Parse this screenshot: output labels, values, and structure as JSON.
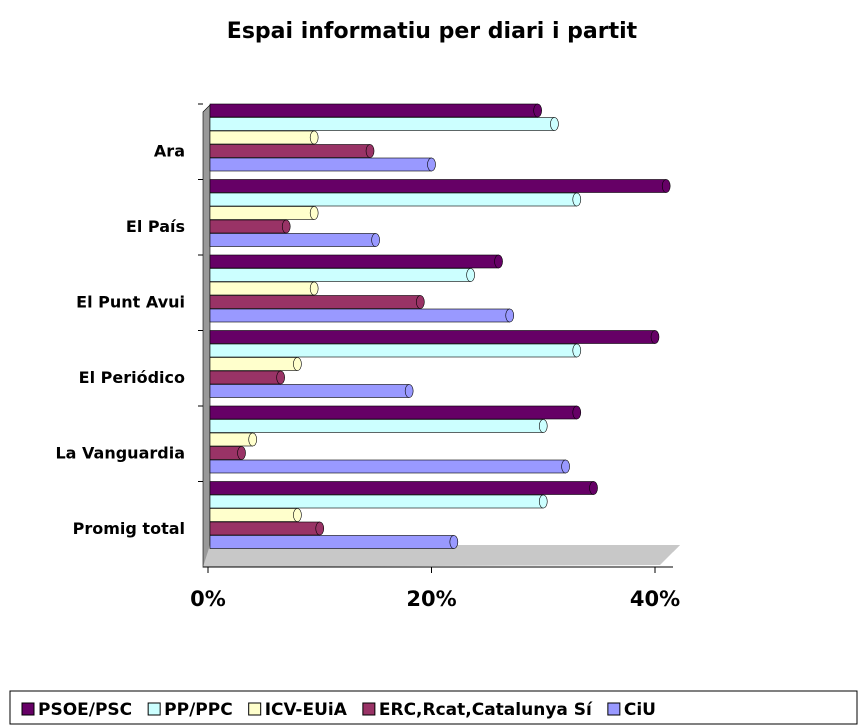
{
  "chart_data": {
    "type": "bar",
    "orientation": "horizontal",
    "title": "Espai informatiu per diari i partit",
    "categories": [
      "Ara",
      "El País",
      "El Punt Avui",
      "El Periódico",
      "La Vanguardia",
      "Promig total"
    ],
    "series": [
      {
        "name": "PSOE/PSC",
        "color": "#660066",
        "values": [
          29.5,
          41,
          26,
          40,
          33,
          34.5
        ]
      },
      {
        "name": "PP/PPC",
        "color": "#ccffff",
        "values": [
          31,
          33,
          23.5,
          33,
          30,
          30
        ]
      },
      {
        "name": "ICV-EUiA",
        "color": "#ffffcc",
        "values": [
          9.5,
          9.5,
          9.5,
          8,
          4,
          8
        ]
      },
      {
        "name": "ERC,Rcat,Catalunya Sí",
        "color": "#993366",
        "values": [
          14.5,
          7,
          19,
          6.5,
          3,
          10
        ]
      },
      {
        "name": "CiU",
        "color": "#9999ff",
        "values": [
          20,
          15,
          27,
          18,
          32,
          22
        ]
      }
    ],
    "xlim": [
      0,
      40
    ],
    "xticks": [
      {
        "value": 0,
        "label": "0%"
      },
      {
        "value": 20,
        "label": "20%"
      },
      {
        "value": 40,
        "label": "40%"
      }
    ],
    "legend": "bottom"
  }
}
